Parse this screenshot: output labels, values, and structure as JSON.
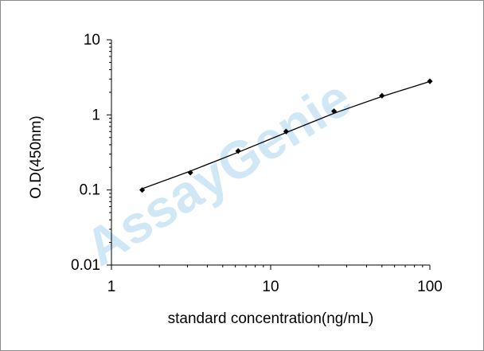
{
  "chart_data": {
    "type": "scatter",
    "title": "",
    "xlabel": "standard concentration(ng/mL)",
    "ylabel": "O.D(450nm)",
    "x_scale": "log",
    "y_scale": "log",
    "xlim": [
      1,
      100
    ],
    "ylim": [
      0.01,
      10
    ],
    "x_ticks": [
      "1",
      "10",
      "100"
    ],
    "y_ticks": [
      "0.01",
      "0.1",
      "1",
      "10"
    ],
    "grid": false,
    "legend": "none",
    "series": [
      {
        "x": [
          1.56,
          3.13,
          6.25,
          12.5,
          25,
          50,
          100
        ],
        "y": [
          0.1,
          0.17,
          0.33,
          0.6,
          1.12,
          1.8,
          2.8
        ]
      }
    ],
    "fit_curve": {
      "x": [
        1.56,
        3.13,
        6.25,
        12.5,
        25,
        50,
        100
      ],
      "y": [
        0.104,
        0.178,
        0.318,
        0.58,
        1.05,
        1.76,
        2.78
      ]
    },
    "watermark": "AssayGenie",
    "colors": {
      "marker": "#000000",
      "axis": "#000000",
      "watermark": "#a9d6ee"
    }
  }
}
